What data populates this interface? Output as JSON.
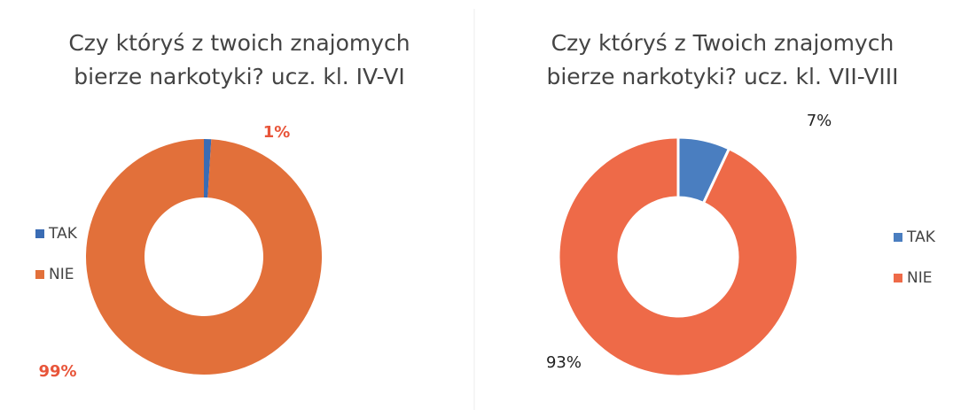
{
  "chart_data": [
    {
      "type": "donut",
      "title": [
        "Czy któryś z twoich znajomych",
        "bierze narkotyki? ucz. kl. IV-VI"
      ],
      "categories": [
        "TAK",
        "NIE"
      ],
      "values": [
        1,
        99
      ],
      "value_labels": [
        "1%",
        "99%"
      ],
      "colors": [
        "#3a6cb4",
        "#e2703a"
      ],
      "label_color": "#e8553a",
      "label_bold": true,
      "legend": "left"
    },
    {
      "type": "donut",
      "title": [
        "Czy któryś z Twoich znajomych",
        "bierze narkotyki? ucz. kl. VII-VIII"
      ],
      "categories": [
        "TAK",
        "NIE"
      ],
      "values": [
        7,
        93
      ],
      "value_labels": [
        "7%",
        "93%"
      ],
      "colors": [
        "#4a7ec0",
        "#ee6a48"
      ],
      "label_color": "#222222",
      "label_bold": false,
      "legend": "right"
    }
  ]
}
